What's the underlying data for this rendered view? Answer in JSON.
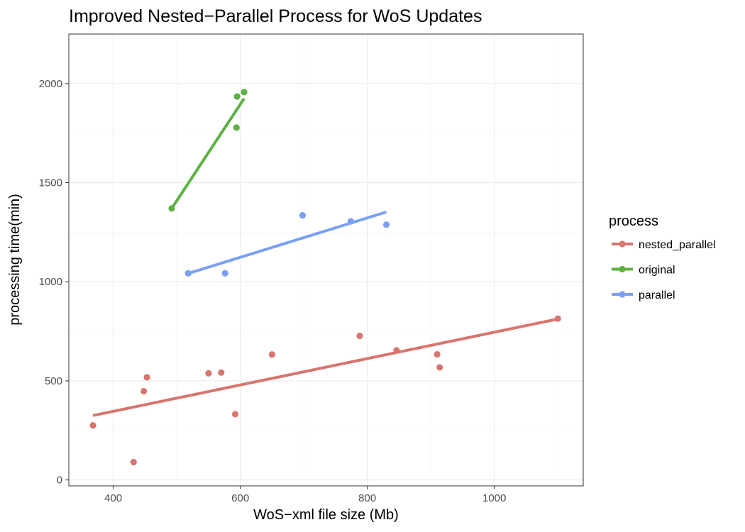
{
  "chart_data": {
    "type": "scatter",
    "title": "Improved Nested−Parallel Process for WoS Updates",
    "xlabel": "WoS−xml file size (Mb)",
    "ylabel": "processing time(min)",
    "xlim": [
      330,
      1140
    ],
    "ylim": [
      -30,
      2250
    ],
    "x_ticks": [
      400,
      600,
      800,
      1000
    ],
    "x_tick_labels": [
      "400",
      "600",
      "800",
      "1000"
    ],
    "y_ticks": [
      0,
      500,
      1000,
      1500,
      2000
    ],
    "y_tick_labels": [
      "0",
      "500",
      "1000",
      "1500",
      "2000"
    ],
    "grid": true,
    "legend": {
      "title": "process",
      "placement": "right"
    },
    "series": [
      {
        "name": "nested_parallel",
        "color": "#d7756f",
        "points": [
          {
            "x": 368,
            "y": 275
          },
          {
            "x": 432,
            "y": 90
          },
          {
            "x": 448,
            "y": 448
          },
          {
            "x": 453,
            "y": 518
          },
          {
            "x": 550,
            "y": 538
          },
          {
            "x": 570,
            "y": 542
          },
          {
            "x": 592,
            "y": 332
          },
          {
            "x": 650,
            "y": 633
          },
          {
            "x": 788,
            "y": 727
          },
          {
            "x": 846,
            "y": 654
          },
          {
            "x": 910,
            "y": 634
          },
          {
            "x": 914,
            "y": 568
          },
          {
            "x": 1100,
            "y": 814
          }
        ],
        "fit": {
          "x": [
            368,
            1100
          ],
          "y": [
            325,
            812
          ]
        }
      },
      {
        "name": "original",
        "color": "#5db143",
        "points": [
          {
            "x": 492,
            "y": 1370
          },
          {
            "x": 594,
            "y": 1778
          },
          {
            "x": 595,
            "y": 1935
          },
          {
            "x": 606,
            "y": 1957
          }
        ],
        "fit": {
          "x": [
            492,
            606
          ],
          "y": [
            1370,
            1925
          ]
        }
      },
      {
        "name": "parallel",
        "color": "#7aa0f5",
        "points": [
          {
            "x": 518,
            "y": 1043
          },
          {
            "x": 576,
            "y": 1043
          },
          {
            "x": 698,
            "y": 1335
          },
          {
            "x": 774,
            "y": 1305
          },
          {
            "x": 830,
            "y": 1288
          }
        ],
        "fit": {
          "x": [
            518,
            830
          ],
          "y": [
            1042,
            1352
          ]
        }
      }
    ]
  }
}
